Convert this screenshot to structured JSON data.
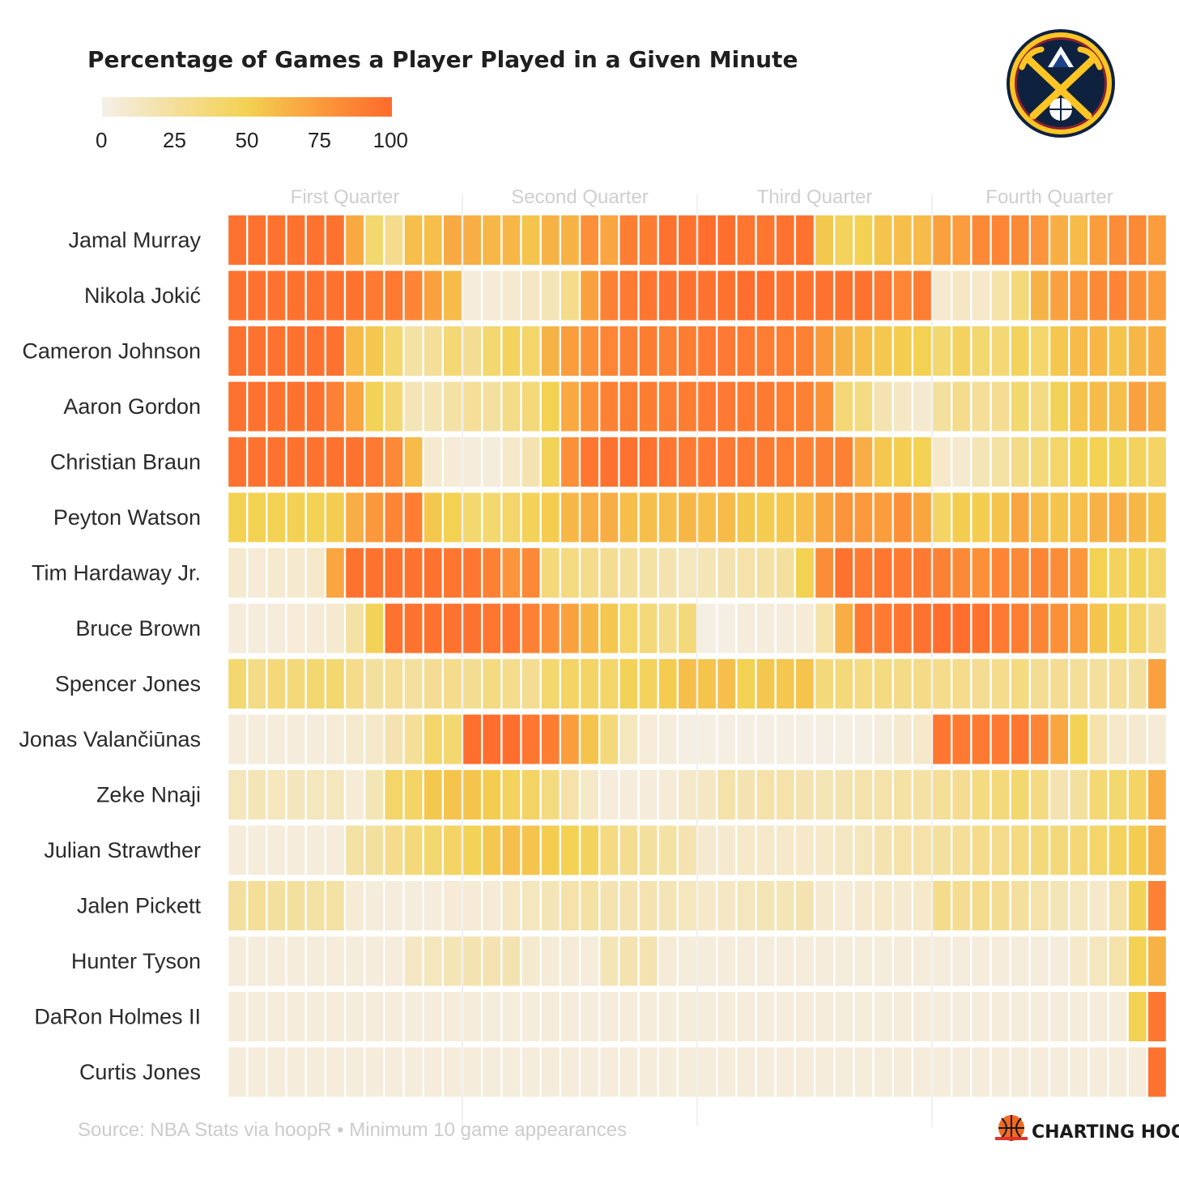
{
  "chart_data": {
    "type": "heatmap",
    "title": "Percentage of Games a Player Played in a Given Minute",
    "legend": {
      "ticks": [
        0,
        25,
        50,
        75,
        100
      ],
      "min": 0,
      "max": 100
    },
    "quarters": [
      "First Quarter",
      "Second Quarter",
      "Third Quarter",
      "Fourth Quarter"
    ],
    "minutes_per_quarter": 12,
    "players": [
      "Jamal Murray",
      "Nikola Jokić",
      "Cameron Johnson",
      "Aaron Gordon",
      "Christian Braun",
      "Peyton Watson",
      "Tim Hardaway Jr.",
      "Bruce Brown",
      "Spencer Jones",
      "Jonas Valančiūnas",
      "Zeke Nnaji",
      "Julian Strawther",
      "Jalen Pickett",
      "Hunter Tyson",
      "DaRon Holmes II",
      "Curtis Jones"
    ],
    "values": [
      [
        96,
        96,
        96,
        96,
        96,
        96,
        68,
        40,
        30,
        58,
        58,
        68,
        66,
        62,
        62,
        56,
        64,
        64,
        80,
        70,
        90,
        90,
        96,
        96,
        98,
        98,
        94,
        94,
        96,
        96,
        54,
        46,
        50,
        56,
        58,
        60,
        72,
        74,
        84,
        86,
        84,
        78,
        66,
        60,
        74,
        82,
        84,
        74
      ],
      [
        96,
        96,
        96,
        96,
        96,
        96,
        96,
        92,
        92,
        86,
        72,
        60,
        4,
        6,
        8,
        12,
        16,
        30,
        72,
        88,
        92,
        94,
        96,
        96,
        96,
        96,
        98,
        98,
        96,
        96,
        96,
        96,
        96,
        92,
        86,
        90,
        8,
        12,
        10,
        20,
        36,
        64,
        72,
        76,
        84,
        86,
        80,
        74
      ],
      [
        96,
        96,
        96,
        96,
        96,
        96,
        60,
        54,
        40,
        22,
        26,
        38,
        28,
        40,
        46,
        42,
        64,
        74,
        80,
        86,
        88,
        90,
        88,
        90,
        92,
        92,
        92,
        90,
        90,
        88,
        76,
        64,
        58,
        54,
        52,
        50,
        40,
        46,
        40,
        38,
        46,
        42,
        54,
        60,
        62,
        56,
        62,
        66
      ],
      [
        96,
        96,
        96,
        96,
        96,
        88,
        70,
        48,
        38,
        16,
        16,
        22,
        26,
        24,
        32,
        36,
        50,
        68,
        80,
        88,
        90,
        90,
        90,
        90,
        92,
        92,
        92,
        92,
        90,
        88,
        80,
        38,
        34,
        18,
        12,
        8,
        24,
        30,
        26,
        28,
        40,
        34,
        48,
        56,
        60,
        58,
        72,
        68
      ],
      [
        96,
        96,
        96,
        96,
        96,
        96,
        96,
        92,
        84,
        60,
        8,
        6,
        4,
        4,
        10,
        18,
        48,
        80,
        94,
        96,
        96,
        96,
        94,
        92,
        92,
        92,
        92,
        92,
        90,
        88,
        88,
        88,
        66,
        54,
        52,
        50,
        10,
        8,
        16,
        22,
        32,
        36,
        42,
        48,
        50,
        48,
        46,
        44
      ],
      [
        50,
        50,
        50,
        50,
        50,
        52,
        66,
        76,
        86,
        90,
        54,
        50,
        40,
        40,
        42,
        48,
        52,
        62,
        66,
        66,
        58,
        58,
        58,
        62,
        58,
        60,
        54,
        52,
        54,
        58,
        70,
        78,
        76,
        74,
        80,
        70,
        44,
        52,
        52,
        56,
        70,
        60,
        56,
        58,
        64,
        66,
        62,
        56
      ],
      [
        8,
        6,
        8,
        8,
        10,
        70,
        96,
        96,
        96,
        96,
        96,
        94,
        94,
        88,
        78,
        84,
        36,
        34,
        30,
        28,
        24,
        22,
        18,
        14,
        16,
        18,
        20,
        22,
        24,
        50,
        82,
        96,
        92,
        94,
        92,
        92,
        88,
        84,
        80,
        86,
        84,
        86,
        82,
        76,
        50,
        46,
        48,
        42
      ],
      [
        4,
        4,
        4,
        6,
        6,
        8,
        22,
        48,
        96,
        96,
        96,
        96,
        96,
        94,
        94,
        88,
        80,
        72,
        62,
        54,
        42,
        36,
        30,
        36,
        2,
        2,
        4,
        4,
        4,
        6,
        20,
        66,
        92,
        92,
        94,
        96,
        98,
        98,
        96,
        92,
        90,
        86,
        80,
        74,
        56,
        48,
        42,
        30
      ],
      [
        40,
        32,
        36,
        36,
        40,
        40,
        30,
        24,
        26,
        24,
        28,
        30,
        28,
        34,
        30,
        28,
        40,
        44,
        44,
        42,
        48,
        46,
        52,
        58,
        56,
        58,
        50,
        54,
        54,
        56,
        36,
        36,
        34,
        34,
        32,
        32,
        30,
        30,
        28,
        30,
        34,
        28,
        28,
        26,
        24,
        26,
        24,
        72
      ],
      [
        4,
        4,
        4,
        4,
        4,
        6,
        8,
        10,
        18,
        26,
        42,
        40,
        98,
        98,
        98,
        94,
        90,
        74,
        56,
        36,
        14,
        6,
        4,
        2,
        2,
        2,
        2,
        2,
        2,
        2,
        2,
        2,
        2,
        4,
        8,
        10,
        94,
        92,
        92,
        92,
        94,
        86,
        70,
        50,
        20,
        10,
        8,
        6
      ],
      [
        14,
        16,
        14,
        14,
        14,
        14,
        6,
        16,
        42,
        44,
        54,
        56,
        56,
        52,
        46,
        44,
        34,
        20,
        10,
        4,
        4,
        4,
        6,
        10,
        12,
        20,
        18,
        20,
        20,
        18,
        16,
        18,
        20,
        20,
        22,
        22,
        26,
        28,
        34,
        36,
        40,
        34,
        18,
        24,
        38,
        40,
        44,
        66
      ],
      [
        4,
        4,
        4,
        4,
        4,
        4,
        22,
        24,
        30,
        36,
        40,
        44,
        48,
        54,
        58,
        56,
        52,
        50,
        46,
        34,
        28,
        24,
        22,
        18,
        8,
        8,
        10,
        10,
        10,
        10,
        10,
        12,
        14,
        18,
        20,
        20,
        24,
        26,
        30,
        30,
        34,
        36,
        36,
        38,
        42,
        46,
        52,
        66
      ],
      [
        24,
        26,
        24,
        24,
        22,
        22,
        6,
        4,
        4,
        4,
        4,
        6,
        6,
        6,
        12,
        14,
        16,
        20,
        22,
        18,
        18,
        18,
        16,
        14,
        10,
        12,
        14,
        16,
        16,
        18,
        8,
        6,
        8,
        10,
        8,
        10,
        30,
        28,
        30,
        28,
        24,
        20,
        16,
        14,
        10,
        20,
        48,
        88
      ],
      [
        4,
        4,
        4,
        4,
        4,
        4,
        4,
        4,
        4,
        12,
        14,
        16,
        18,
        18,
        18,
        8,
        6,
        6,
        4,
        16,
        18,
        18,
        6,
        4,
        4,
        4,
        4,
        4,
        4,
        4,
        4,
        4,
        4,
        4,
        4,
        4,
        4,
        4,
        4,
        4,
        4,
        4,
        4,
        10,
        14,
        20,
        50,
        64
      ],
      [
        4,
        4,
        4,
        4,
        4,
        4,
        4,
        4,
        4,
        4,
        4,
        4,
        4,
        4,
        4,
        4,
        4,
        4,
        4,
        4,
        4,
        4,
        4,
        4,
        4,
        4,
        4,
        4,
        4,
        4,
        4,
        4,
        4,
        4,
        4,
        4,
        4,
        4,
        4,
        4,
        4,
        4,
        4,
        4,
        4,
        4,
        50,
        94
      ],
      [
        4,
        4,
        4,
        4,
        4,
        4,
        4,
        4,
        4,
        4,
        4,
        4,
        4,
        4,
        4,
        4,
        4,
        4,
        4,
        4,
        4,
        4,
        4,
        4,
        4,
        4,
        4,
        4,
        4,
        4,
        4,
        4,
        4,
        4,
        4,
        4,
        4,
        4,
        4,
        4,
        4,
        4,
        4,
        4,
        4,
        4,
        4,
        96
      ]
    ],
    "color_scale": [
      "#f5efe8",
      "#f4df9b",
      "#f3d152",
      "#fb9a3c",
      "#ff6a2c"
    ]
  },
  "source_text": "Source: NBA Stats via hoopR • Minimum 10 game appearances",
  "brand": {
    "name": "CHARTING HOOPS"
  },
  "logo": {
    "alt": "Denver Nuggets logo"
  }
}
